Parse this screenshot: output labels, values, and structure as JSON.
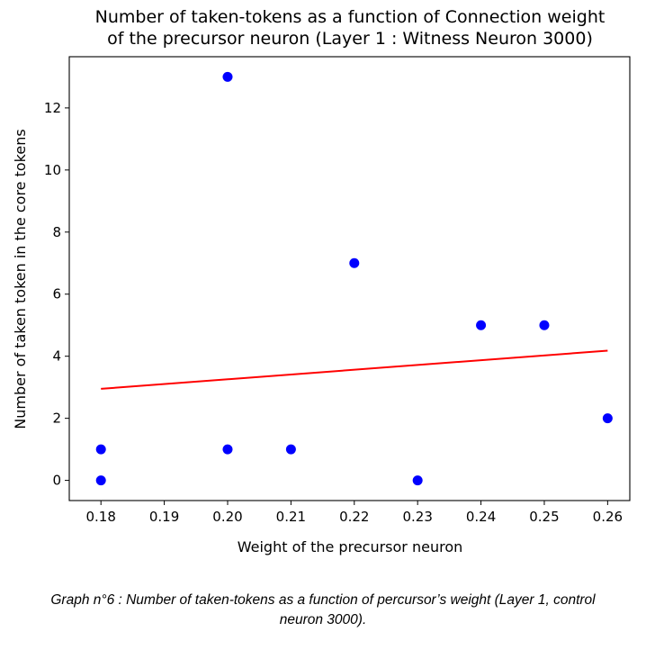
{
  "chart_data": {
    "type": "scatter",
    "title_lines": [
      "Number of taken-tokens as a function of Connection weight",
      "of the precursor neuron  (Layer 1 : Witness Neuron 3000)"
    ],
    "xlabel": "Weight of the precursor neuron",
    "ylabel": "Number of taken token in the core tokens",
    "xlim": [
      0.175,
      0.2635
    ],
    "ylim": [
      -0.65,
      13.65
    ],
    "xticks": [
      0.18,
      0.19,
      0.2,
      0.21,
      0.22,
      0.23,
      0.24,
      0.25,
      0.26
    ],
    "xtick_labels": [
      "0.18",
      "0.19",
      "0.20",
      "0.21",
      "0.22",
      "0.23",
      "0.24",
      "0.25",
      "0.26"
    ],
    "yticks": [
      0,
      2,
      4,
      6,
      8,
      10,
      12
    ],
    "ytick_labels": [
      "0",
      "2",
      "4",
      "6",
      "8",
      "10",
      "12"
    ],
    "series": [
      {
        "name": "observations",
        "kind": "points",
        "color": "#0000ff",
        "x": [
          0.18,
          0.18,
          0.2,
          0.2,
          0.21,
          0.22,
          0.23,
          0.24,
          0.25,
          0.26
        ],
        "y": [
          1,
          0,
          13,
          1,
          1,
          7,
          0,
          5,
          5,
          2
        ]
      },
      {
        "name": "linear fit",
        "kind": "line",
        "color": "#ff0000",
        "x": [
          0.18,
          0.26
        ],
        "y": [
          2.95,
          4.18
        ]
      }
    ],
    "grid": false,
    "legend": "none"
  },
  "caption": {
    "line1": "Graph n°6 : Number of taken-tokens as a function of percursor’s weight (Layer 1, control",
    "line2": "neuron 3000)."
  }
}
